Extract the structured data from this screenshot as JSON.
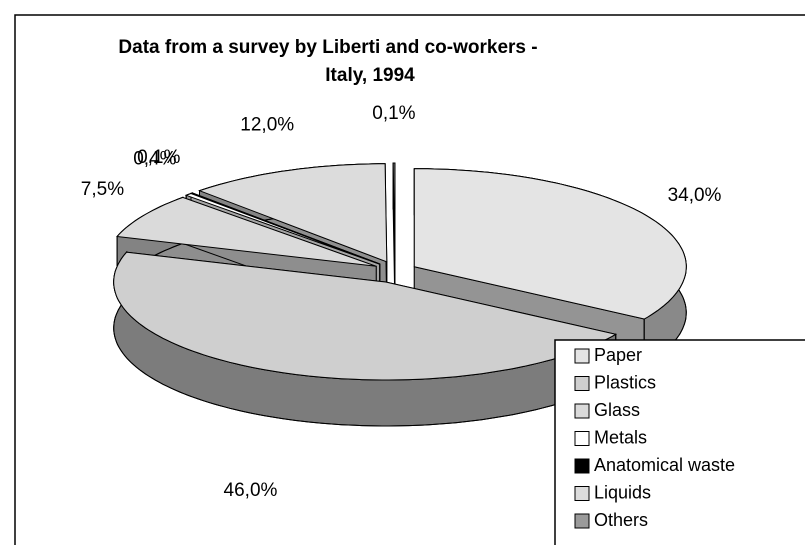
{
  "chart_data": {
    "type": "pie3d",
    "title": "Data from a survey by Liberti and co-workers -",
    "subtitle": "Italy, 1994",
    "categories": [
      "Paper",
      "Plastics",
      "Glass",
      "Metals",
      "Anatomical waste",
      "Liquids",
      "Others"
    ],
    "values": [
      34,
      46,
      7.5,
      0.4,
      0.1,
      12,
      0.1
    ],
    "value_labels": [
      "34,0%",
      "46,0%",
      "7,5%",
      "0,4%",
      "0,1%",
      "12,0%",
      "0,1%"
    ],
    "colors": [
      "#e4e4e4",
      "#cfcfcf",
      "#dadada",
      "#ffffff",
      "#000000",
      "#dcdcdc",
      "#9a9a9a"
    ],
    "legend": "lower right"
  }
}
